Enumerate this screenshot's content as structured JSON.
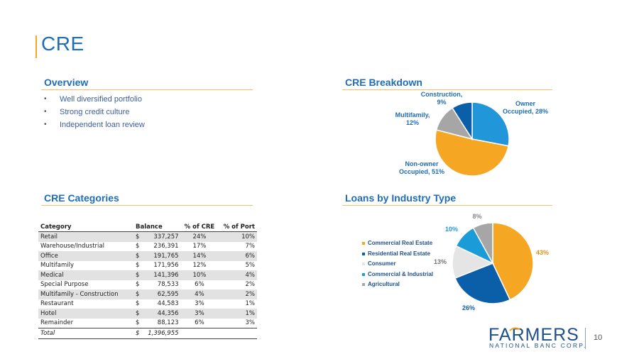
{
  "page": {
    "title": "CRE",
    "page_number": "10"
  },
  "overview": {
    "heading": "Overview",
    "bullets": [
      "Well diversified portfolio",
      "Strong credit culture",
      "Independent loan review"
    ]
  },
  "breakdown": {
    "heading": "CRE Breakdown",
    "labels": {
      "owner": "Owner\nOccupied, 28%",
      "nonowner": "Non-owner\nOccupied, 51%",
      "multifamily": "Multifamily,\n12%",
      "construction": "Construction,\n9%"
    }
  },
  "categories": {
    "heading": "CRE Categories",
    "columns": [
      "Category",
      "Balance",
      "% of CRE",
      "% of Port"
    ],
    "rows": [
      {
        "category": "Retail",
        "dollar": "$",
        "balance": "337,257",
        "cre": "24%",
        "port": "10%"
      },
      {
        "category": "Warehouse/Industrial",
        "dollar": "$",
        "balance": "236,391",
        "cre": "17%",
        "port": "7%"
      },
      {
        "category": "Office",
        "dollar": "$",
        "balance": "191,765",
        "cre": "14%",
        "port": "6%"
      },
      {
        "category": "Multifamily",
        "dollar": "$",
        "balance": "171,956",
        "cre": "12%",
        "port": "5%"
      },
      {
        "category": "Medical",
        "dollar": "$",
        "balance": "141,396",
        "cre": "10%",
        "port": "4%"
      },
      {
        "category": "Special Purpose",
        "dollar": "$",
        "balance": "78,533",
        "cre": "6%",
        "port": "2%"
      },
      {
        "category": "Multifamily - Construction",
        "dollar": "$",
        "balance": "62,595",
        "cre": "4%",
        "port": "2%"
      },
      {
        "category": "Restaurant",
        "dollar": "$",
        "balance": "44,583",
        "cre": "3%",
        "port": "1%"
      },
      {
        "category": "Hotel",
        "dollar": "$",
        "balance": "44,356",
        "cre": "3%",
        "port": "1%"
      },
      {
        "category": "Remainder",
        "dollar": "$",
        "balance": "88,123",
        "cre": "6%",
        "port": "3%"
      }
    ],
    "total": {
      "category": "Total",
      "dollar": "$",
      "balance": "1,396,955"
    }
  },
  "industry": {
    "heading": "Loans by Industry Type",
    "legend": [
      "Commercial Real Estate",
      "Residential Real Estate",
      "Consumer",
      "Commercial & Industrial",
      "Agricultural"
    ],
    "colors": [
      "#f5a623",
      "#0b5ea8",
      "#e5e5e5",
      "#1b9bd7",
      "#a6a6a6"
    ]
  },
  "chart_data": [
    {
      "type": "pie",
      "title": "CRE Breakdown",
      "categories": [
        "Owner Occupied",
        "Non-owner Occupied",
        "Multifamily",
        "Construction"
      ],
      "values": [
        28,
        51,
        12,
        9
      ],
      "colors": [
        "#2196d9",
        "#f5a623",
        "#a6a6a6",
        "#0b5ea8"
      ]
    },
    {
      "type": "pie",
      "title": "Loans by Industry Type",
      "categories": [
        "Commercial Real Estate",
        "Residential Real Estate",
        "Consumer",
        "Commercial & Industrial",
        "Agricultural"
      ],
      "values": [
        43,
        26,
        13,
        10,
        8
      ],
      "labels": [
        "43%",
        "26%",
        "13%",
        "10%",
        "8%"
      ],
      "colors": [
        "#f5a623",
        "#0b5ea8",
        "#e5e5e5",
        "#1b9bd7",
        "#a6a6a6"
      ],
      "legend": "left"
    }
  ],
  "logo": {
    "name": "FARMERS",
    "sub": "NATIONAL BANC CORP."
  }
}
